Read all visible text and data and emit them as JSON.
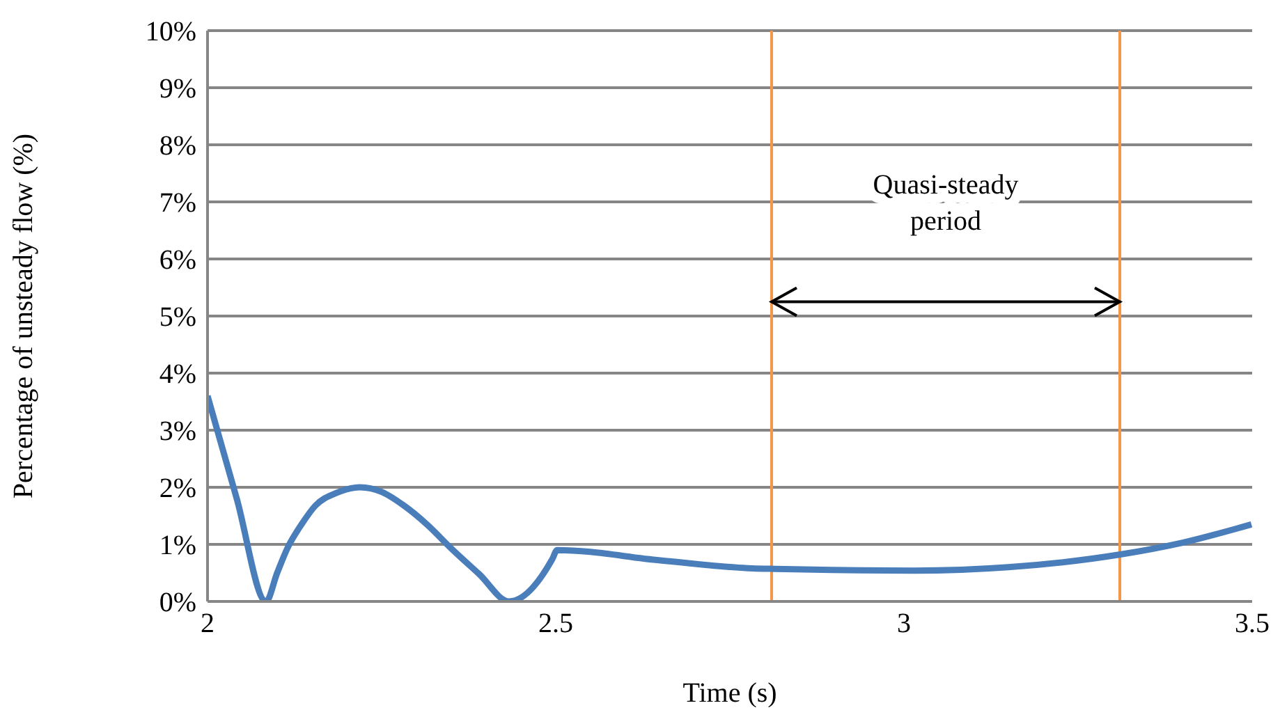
{
  "chart_data": {
    "type": "line",
    "xlabel": "Time (s)",
    "ylabel": "Percentage of unsteady flow (%)",
    "x": [
      2,
      2.042,
      2.084,
      2.1,
      2.115,
      2.135,
      2.155,
      2.185,
      2.219,
      2.25,
      2.282,
      2.315,
      2.349,
      2.39,
      2.433,
      2.495,
      2.502,
      2.65,
      2.782,
      2.815,
      3.015,
      3.15,
      3.309,
      3.4,
      3.499
    ],
    "series": [
      {
        "color": "#4a7ebb",
        "values": [
          3.6,
          1.8,
          0,
          0.5,
          0.94,
          1.35,
          1.68,
          1.9,
          2.0,
          1.92,
          1.68,
          1.35,
          0.94,
          0.48,
          0,
          0.74,
          0.9,
          0.72,
          0.58,
          0.57,
          0.54,
          0.6,
          0.82,
          1.03,
          1.35
        ]
      }
    ],
    "xlim": [
      2,
      3.5
    ],
    "xticks": [
      2,
      2.5,
      3,
      3.5
    ],
    "ylim": [
      0,
      10
    ],
    "yticks": [
      {
        "value": 0,
        "label": "0%"
      },
      {
        "value": 1,
        "label": "1%"
      },
      {
        "value": 2,
        "label": "2%"
      },
      {
        "value": 3,
        "label": "3%"
      },
      {
        "value": 4,
        "label": "4%"
      },
      {
        "value": 5,
        "label": "5%"
      },
      {
        "value": 6,
        "label": "6%"
      },
      {
        "value": 7,
        "label": "7%"
      },
      {
        "value": 8,
        "label": "8%"
      },
      {
        "value": 9,
        "label": "9%"
      },
      {
        "value": 10,
        "label": "10%"
      }
    ],
    "grid": "y",
    "legend": false,
    "marker": "none",
    "line_style": "solid",
    "ref_lines": [
      {
        "axis": "x",
        "value": 2.81,
        "color": "#f79646"
      },
      {
        "axis": "x",
        "value": 3.31,
        "color": "#f79646"
      }
    ],
    "annotations": [
      "Quasi-steady\nperiod"
    ]
  }
}
